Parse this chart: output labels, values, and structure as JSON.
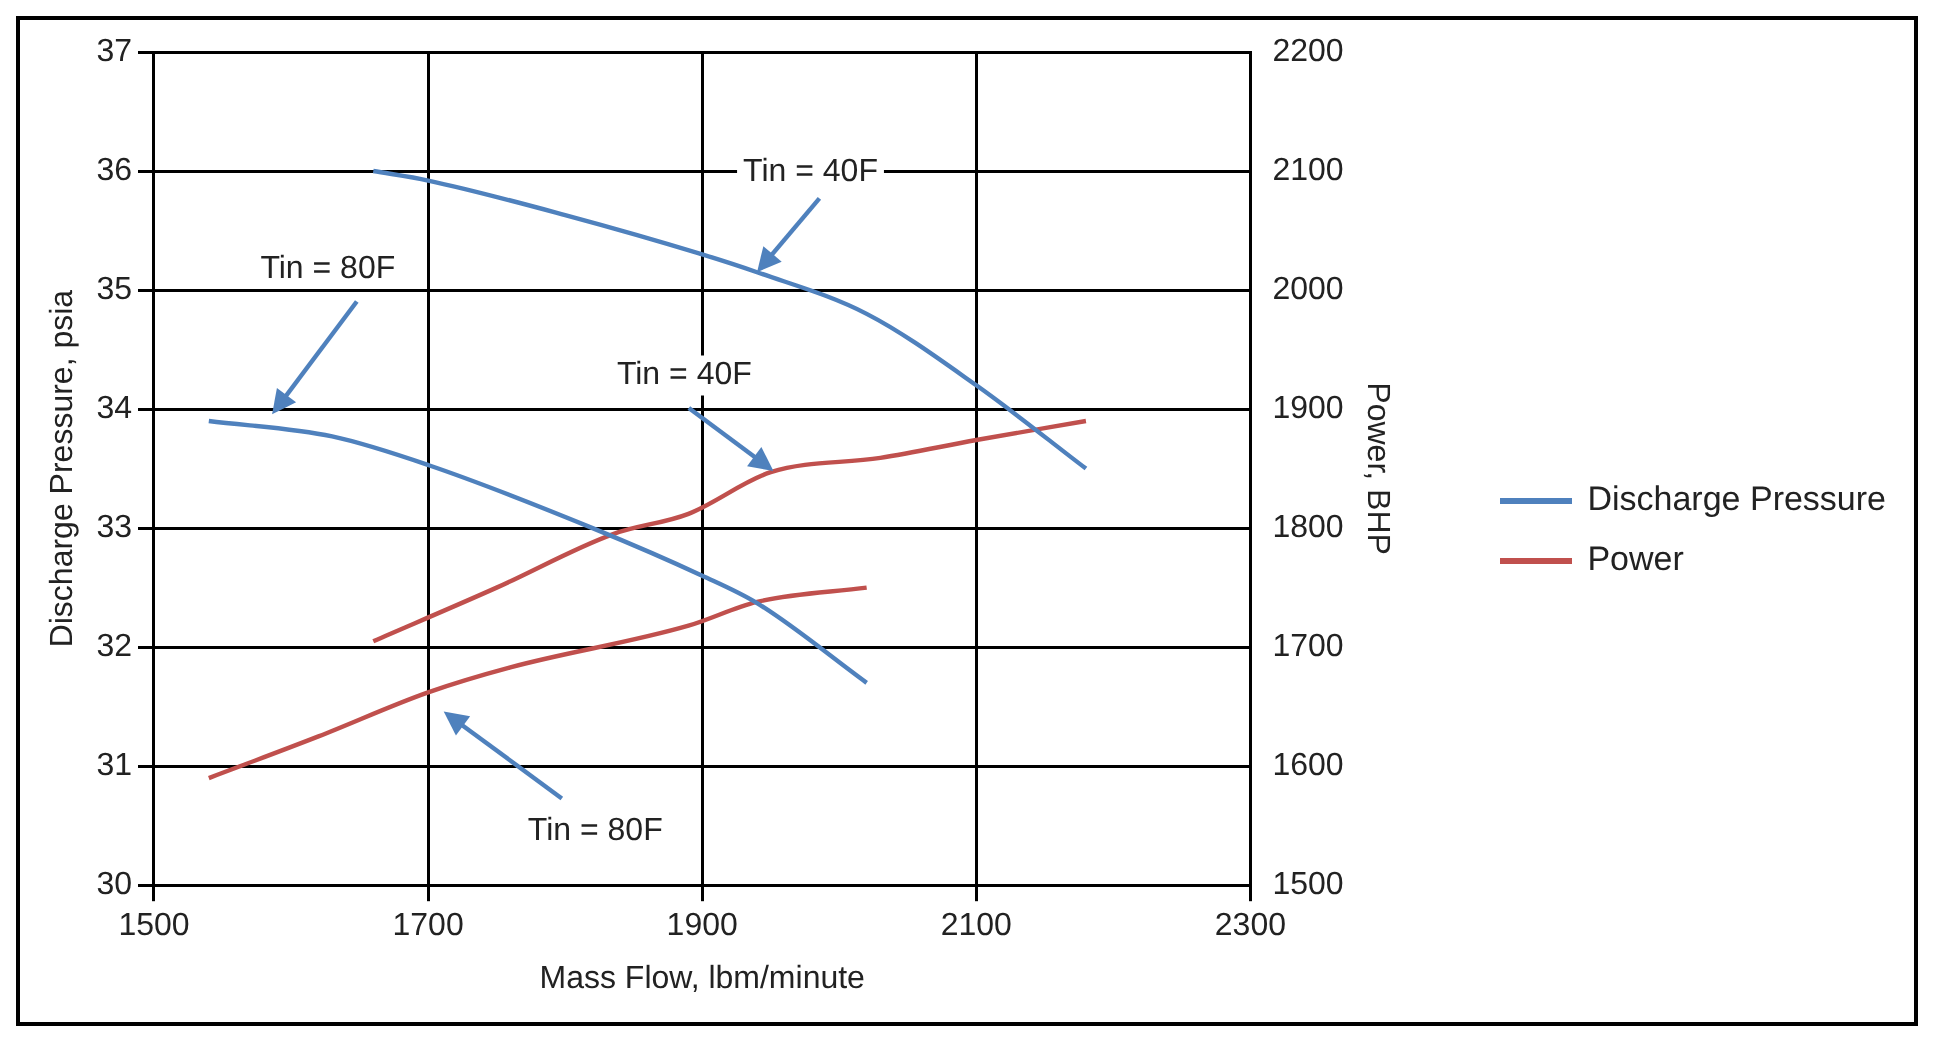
{
  "chart_data": {
    "type": "line",
    "xlabel": "Mass Flow, lbm/minute",
    "ylabel": "Discharge Pressure, psia",
    "y2label": "Power, BHP",
    "xlim": [
      1500,
      2300
    ],
    "xticks": [
      1500,
      1700,
      1900,
      2100,
      2300
    ],
    "ylim": [
      30,
      37
    ],
    "yticks": [
      30,
      31,
      32,
      33,
      34,
      35,
      36,
      37
    ],
    "y2lim": [
      1500,
      2200
    ],
    "y2ticks": [
      1500,
      1600,
      1700,
      1800,
      1900,
      2000,
      2100,
      2200
    ],
    "grid": true,
    "legend": "right",
    "marker": "none",
    "series": [
      {
        "name": "Discharge Pressure",
        "color": "#4f81bd",
        "x": [
          1660,
          1700,
          1800,
          1900,
          1940,
          2020,
          2100,
          2180
        ],
        "values": [
          36.0,
          35.92,
          35.63,
          35.3,
          35.15,
          34.8,
          34.2,
          33.5
        ]
      },
      {
        "color": "#4f81bd",
        "x": [
          1540,
          1630,
          1700,
          1820,
          1900,
          1940,
          2020
        ],
        "values": [
          33.9,
          33.77,
          33.53,
          33.0,
          32.6,
          32.37,
          31.7
        ]
      },
      {
        "name": "Power",
        "color": "#c0504d",
        "axis": "y2",
        "x": [
          1660,
          1750,
          1835,
          1890,
          1950,
          2030,
          2100,
          2180
        ],
        "values": [
          1705,
          1750,
          1795,
          1812,
          1847,
          1859,
          1874,
          1890
        ]
      },
      {
        "color": "#c0504d",
        "axis": "y2",
        "x": [
          1540,
          1620,
          1700,
          1760,
          1890,
          1940,
          2020
        ],
        "values": [
          1590,
          1625,
          1662,
          1683,
          1718,
          1738,
          1750
        ]
      }
    ],
    "annotations": [
      {
        "text": "Tin = 40F",
        "x": 1940,
        "y": 35.15
      },
      "Tin = 80F",
      {
        "text": "Tin = 40F",
        "x": 1952,
        "y": 33.48
      },
      "Tin = 80F"
    ]
  }
}
